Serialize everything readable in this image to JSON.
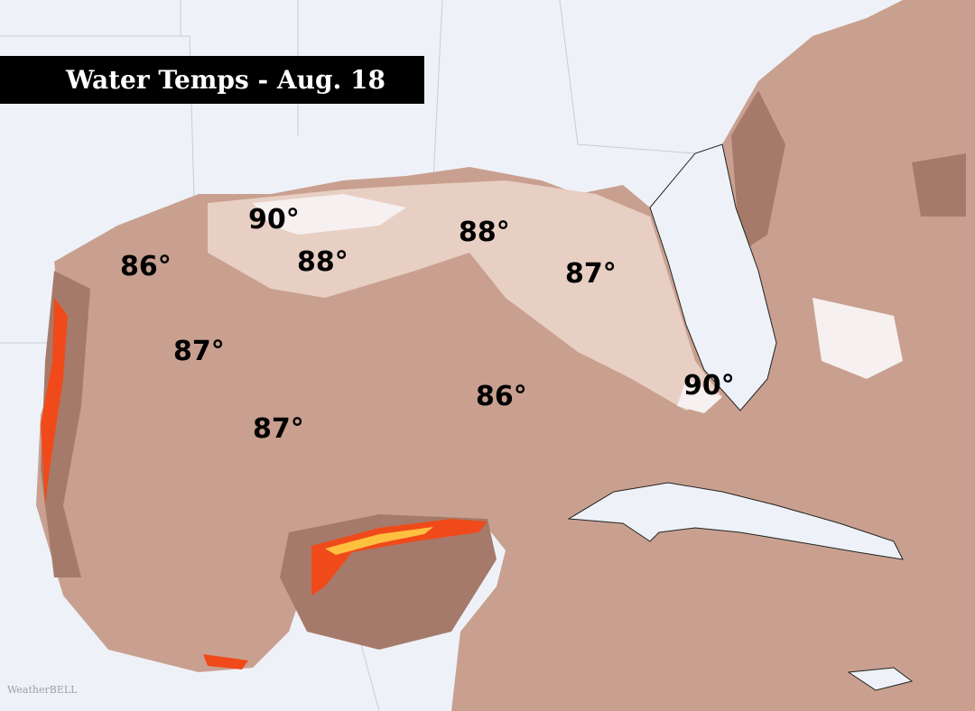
{
  "title": "Water Temps - Aug. 18",
  "labels": [
    "90°",
    "88°",
    "86°",
    "88°",
    "87°",
    "87°",
    "87°",
    "86°",
    "90°"
  ],
  "watermark": "WeatherBELL"
}
